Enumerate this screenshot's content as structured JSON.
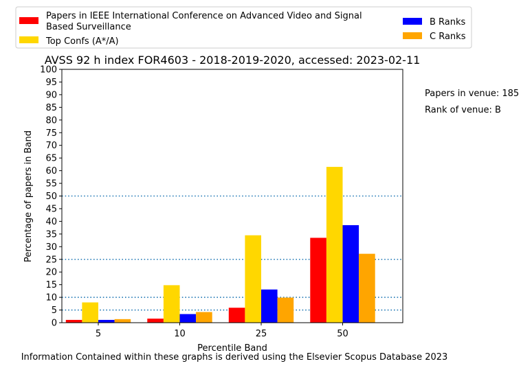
{
  "chart_data": {
    "type": "bar",
    "title": "AVSS 92 h index FOR4603 - 2018-2019-2020, accessed: 2023-02-11",
    "xlabel": "Percentile Band",
    "ylabel": "Percentage of papers in Band",
    "categories": [
      "5",
      "10",
      "25",
      "50"
    ],
    "ylim": [
      0,
      100
    ],
    "yticks": [
      0,
      5,
      10,
      15,
      20,
      25,
      30,
      35,
      40,
      45,
      50,
      55,
      60,
      65,
      70,
      75,
      80,
      85,
      90,
      95,
      100
    ],
    "reference_lines": [
      5,
      10,
      25,
      50
    ],
    "legend_position": "top",
    "series": [
      {
        "name": "Papers in IEEE International Conference on Advanced Video and Signal Based Surveillance",
        "color": "#ff0000",
        "values": [
          1.1,
          1.6,
          5.9,
          33.5
        ]
      },
      {
        "name": "Top Confs (A*/A)",
        "color": "#ffd700",
        "values": [
          8.0,
          14.8,
          34.5,
          61.5
        ]
      },
      {
        "name": "B Ranks",
        "color": "#0000ff",
        "values": [
          1.1,
          3.4,
          13.1,
          38.5
        ]
      },
      {
        "name": "C Ranks",
        "color": "#ffa500",
        "values": [
          1.4,
          4.2,
          9.9,
          27.2
        ]
      }
    ],
    "annotations": [
      "Papers in venue: 185",
      "Rank of venue: B"
    ],
    "footer": "Information Contained within these graphs is derived using the Elsevier Scopus Database 2023"
  }
}
